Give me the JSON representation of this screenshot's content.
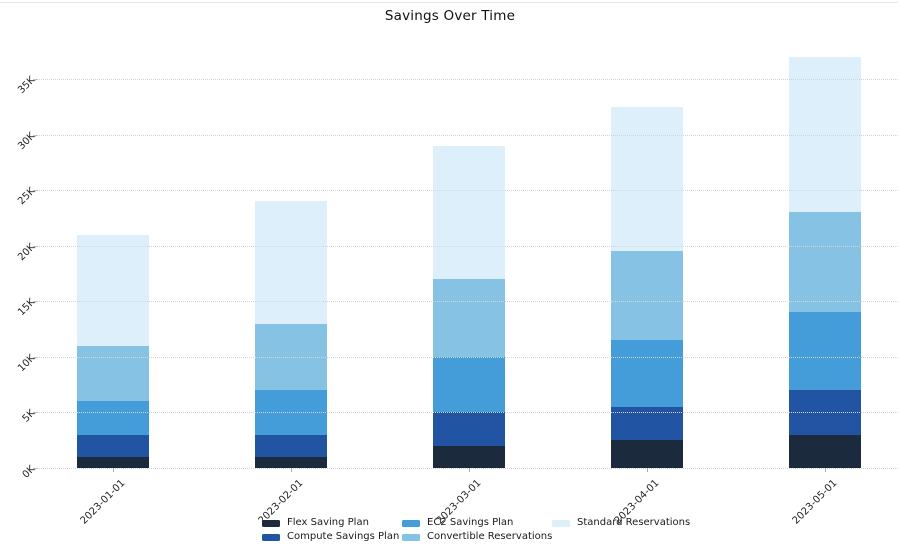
{
  "title": "Savings Over Time",
  "chart_data": {
    "type": "bar",
    "stacked": true,
    "title": "Savings Over Time",
    "xlabel": "",
    "ylabel": "",
    "categories": [
      "2023-01-01",
      "2023-02-01",
      "2023-03-01",
      "2023-04-01",
      "2023-05-01"
    ],
    "series": [
      {
        "name": "Flex Saving Plan",
        "color": "#1c2a3d",
        "values": [
          1000,
          1000,
          2000,
          2500,
          3000
        ]
      },
      {
        "name": "Compute Savings Plan",
        "color": "#2154a3",
        "values": [
          2000,
          2000,
          3000,
          3000,
          4000
        ]
      },
      {
        "name": "EC2 Savings Plan",
        "color": "#449cd9",
        "values": [
          3000,
          4000,
          5000,
          6000,
          7000
        ]
      },
      {
        "name": "Convertible Reservations",
        "color": "#85c2e3",
        "values": [
          5000,
          6000,
          7000,
          8000,
          9000
        ]
      },
      {
        "name": "Standard Reservations",
        "color": "#ddeffb",
        "values": [
          10000,
          11000,
          12000,
          13000,
          14000
        ]
      }
    ],
    "stack_totals": [
      21000,
      24000,
      29000,
      32500,
      37000
    ],
    "y_ticks": [
      {
        "label": "0K",
        "value": 0
      },
      {
        "label": "5K",
        "value": 5000
      },
      {
        "label": "10K",
        "value": 10000
      },
      {
        "label": "15K",
        "value": 15000
      },
      {
        "label": "20K",
        "value": 20000
      },
      {
        "label": "25K",
        "value": 25000
      },
      {
        "label": "30K",
        "value": 30000
      },
      {
        "label": "35K",
        "value": 35000
      }
    ],
    "ylim": [
      0,
      38500
    ],
    "grid": "horizontal-dotted",
    "legend_position": "bottom",
    "legend_columns": [
      [
        0,
        1
      ],
      [
        2,
        3
      ],
      [
        4
      ]
    ]
  },
  "style": {
    "grid_color": "#d4d4d4",
    "tick_label_color": "#262626",
    "title_color": "#111111",
    "background": "#ffffff"
  }
}
